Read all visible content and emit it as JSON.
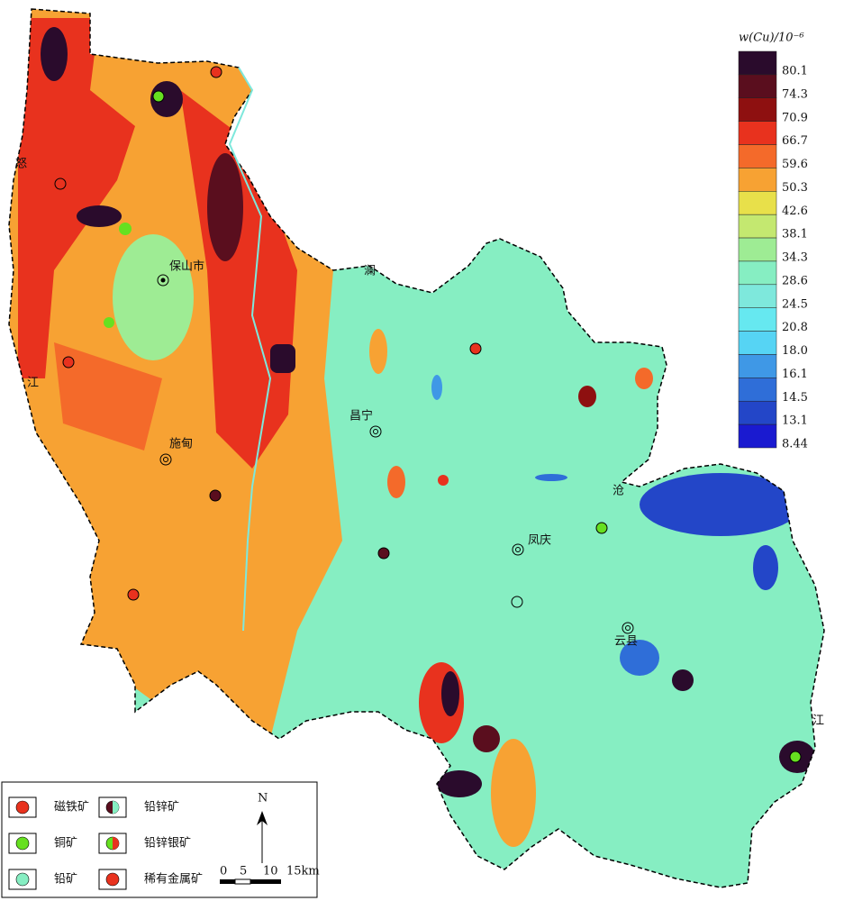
{
  "scale_legend": {
    "title": "w(Cu)/10⁻⁶",
    "labels": [
      "80.1",
      "74.3",
      "70.9",
      "66.7",
      "59.6",
      "50.3",
      "42.6",
      "38.1",
      "34.3",
      "28.6",
      "24.5",
      "20.8",
      "18.0",
      "16.1",
      "14.5",
      "13.1",
      "8.44"
    ],
    "colors": [
      "#2a0b2c",
      "#5a0e1e",
      "#8e1010",
      "#e8321e",
      "#f46a2a",
      "#f7a233",
      "#e8e04a",
      "#c4e870",
      "#9eec94",
      "#86eec2",
      "#7ee8dc",
      "#66e8f0",
      "#56d4f4",
      "#3f98e6",
      "#2f6ed8",
      "#2346c8",
      "#1a1ad0"
    ]
  },
  "places": [
    "保山市",
    "施甸",
    "昌宁",
    "凤庆",
    "云县"
  ],
  "rivers": [
    "怒",
    "江",
    "澜",
    "沧",
    "江"
  ],
  "mineral_legend": [
    "磁铁矿",
    "铅锌矿",
    "铜矿",
    "铅锌银矿",
    "铅矿",
    "稀有金属矿"
  ],
  "scale_bar": {
    "north": "N",
    "ticks": [
      "0",
      "5",
      "10",
      "15km"
    ]
  }
}
